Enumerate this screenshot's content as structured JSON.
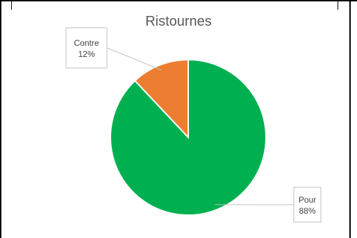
{
  "chart_data": {
    "type": "pie",
    "title": "Ristournes",
    "start_angle_deg": 0,
    "direction": "clockwise",
    "legend": "none",
    "series": [
      {
        "values": [
          88,
          12
        ],
        "categories": [
          "Pour",
          "Contre"
        ]
      }
    ],
    "slices": [
      {
        "label": "Pour",
        "value": 88,
        "percent_label": "88%",
        "color": "#00B050"
      },
      {
        "label": "Contre",
        "value": 12,
        "percent_label": "12%",
        "color": "#ED7D31"
      }
    ]
  }
}
